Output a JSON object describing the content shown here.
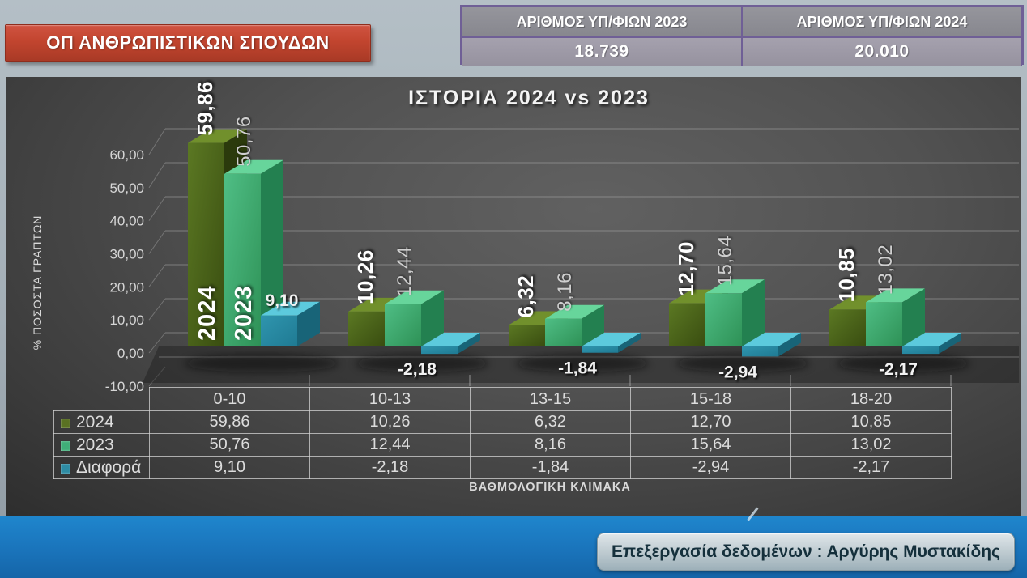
{
  "header": {
    "category_box": {
      "label": "ΟΠ ΑΝΘΡΩΠΙΣΤΙΚΩΝ ΣΠΟΥΔΩΝ",
      "color": "#c2452f"
    },
    "info_table": {
      "border_color": "#6f5f96",
      "columns": [
        {
          "label": "ΑΡΙΘΜΟΣ ΥΠ/ΦΙΩΝ 2023",
          "value": "18.739"
        },
        {
          "label": "ΑΡΙΘΜΟΣ ΥΠ/ΦΙΩΝ 2024",
          "value": "20.010"
        }
      ]
    }
  },
  "chart_data": {
    "type": "bar",
    "style": "3d",
    "title": "ΙΣΤΟΡΙΑ 2024 vs 2023",
    "xlabel": "ΒΑΘΜΟΛΟΓΙΚΗ ΚΛΙΜΑΚΑ",
    "ylabel": "% ΠΟΣΟΣΤΑ ΓΡΑΠΤΩΝ",
    "ylim": [
      -10,
      60
    ],
    "ytick_step": 10,
    "ytick_labels": [
      "60,00",
      "50,00",
      "40,00",
      "30,00",
      "20,00",
      "10,00",
      "0,00",
      "-10,00"
    ],
    "grid": true,
    "legend_position": "table-left",
    "categories": [
      "0-10",
      "10-13",
      "13-15",
      "15-18",
      "18-20"
    ],
    "in_bar_series_labels": [
      "2024",
      "2023"
    ],
    "series": [
      {
        "name": "2024",
        "values": [
          59.86,
          10.26,
          6.32,
          12.7,
          10.85
        ],
        "labels": [
          "59,86",
          "10,26",
          "6,32",
          "12,70",
          "10,85"
        ],
        "colors": {
          "front": "#5b7823",
          "front2": "#394d10",
          "side": "#2b3a0c",
          "top": "#71902c",
          "legend": "#5a7122"
        }
      },
      {
        "name": "2023",
        "values": [
          50.76,
          12.44,
          8.16,
          15.64,
          13.02
        ],
        "labels": [
          "50,76",
          "12,44",
          "8,16",
          "15,64",
          "13,02"
        ],
        "colors": {
          "front": "#4fbe85",
          "front2": "#2e9156",
          "side": "#238050",
          "top": "#67d59b",
          "legend": "#3fae78"
        }
      },
      {
        "name": "Διαφορά",
        "values": [
          9.1,
          -2.18,
          -1.84,
          -2.94,
          -2.17
        ],
        "labels": [
          "9,10",
          "-2,18",
          "-1,84",
          "-2,94",
          "-2,17"
        ],
        "colors": {
          "front": "#2f95ae",
          "front2": "#1f7a93",
          "side": "#186478",
          "top": "#5ccadd",
          "legend": "#2e8ca4"
        }
      }
    ]
  },
  "footer": {
    "credit": "Επεξεργασία δεδομένων : Αργύρης Μυστακίδης",
    "strip_color": "#1b7ec6"
  }
}
